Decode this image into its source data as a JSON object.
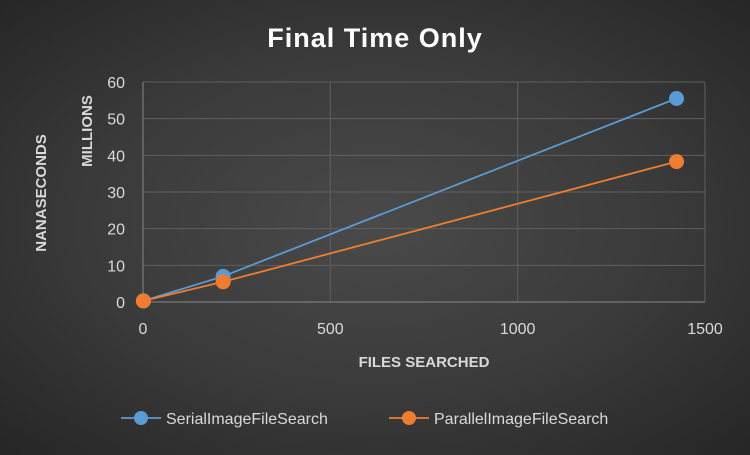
{
  "chart_data": {
    "type": "scatter",
    "title": "Final Time Only",
    "xlabel": "FILES SEARCHED",
    "ylabel": "NANASECONDS",
    "yunit_label": "MILLIONS",
    "xlim": [
      0,
      1500
    ],
    "ylim": [
      0,
      60
    ],
    "xticks": [
      "0",
      "500",
      "1000",
      "1500"
    ],
    "yticks": [
      "0",
      "10",
      "20",
      "30",
      "40",
      "50",
      "60"
    ],
    "grid": true,
    "legend_position": "bottom",
    "series": [
      {
        "name": "SerialImageFileSearch",
        "color": "#5b9bd5",
        "x": [
          1,
          214,
          1424
        ],
        "y": [
          0.3,
          7.0,
          55.5
        ]
      },
      {
        "name": "ParallelImageFileSearch",
        "color": "#ed7d31",
        "x": [
          1,
          214,
          1424
        ],
        "y": [
          0.3,
          5.5,
          38.3
        ]
      }
    ]
  }
}
